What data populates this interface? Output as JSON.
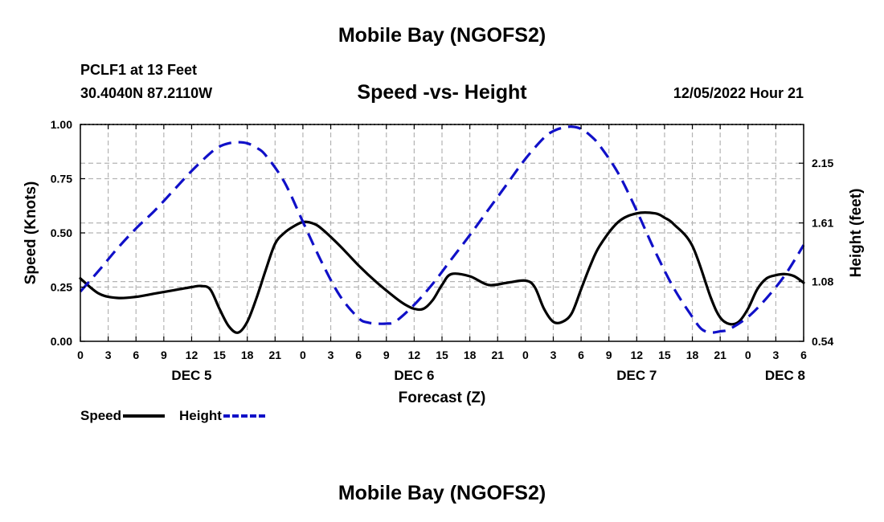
{
  "page": {
    "title_top": "Mobile Bay (NGOFS2)",
    "title_bottom": "Mobile Bay (NGOFS2)",
    "station": "PCLF1 at 13 Feet",
    "coords": "30.4040N  87.2110W",
    "date_hour": "12/05/2022 Hour 21"
  },
  "chart_data": {
    "type": "line",
    "title": "Speed -vs- Height",
    "xlabel": "Forecast (Z)",
    "ylabel": "Speed (Knots)",
    "y2label": "Height (feet)",
    "xlim": [
      0,
      78
    ],
    "ylim": [
      0,
      1.0
    ],
    "y2lim": [
      0.54,
      2.5
    ],
    "x_ticks": [
      0,
      3,
      6,
      9,
      12,
      15,
      18,
      21,
      24,
      27,
      30,
      33,
      36,
      39,
      42,
      45,
      48,
      51,
      54,
      57,
      60,
      63,
      66,
      69,
      72,
      75,
      78
    ],
    "x_tick_labels": [
      "0",
      "3",
      "6",
      "9",
      "12",
      "15",
      "18",
      "21",
      "0",
      "3",
      "6",
      "9",
      "12",
      "15",
      "18",
      "21",
      "0",
      "3",
      "6",
      "9",
      "12",
      "15",
      "18",
      "21",
      "0",
      "3",
      "6"
    ],
    "day_labels": [
      {
        "x": 12,
        "label": "DEC 5"
      },
      {
        "x": 36,
        "label": "DEC 6"
      },
      {
        "x": 60,
        "label": "DEC 7"
      },
      {
        "x": 76,
        "label": "DEC 8"
      }
    ],
    "y_ticks": [
      0.0,
      0.25,
      0.5,
      0.75,
      1.0
    ],
    "y_tick_labels": [
      "0.00",
      "0.25",
      "0.50",
      "0.75",
      "1.00"
    ],
    "y2_ticks": [
      0.54,
      1.08,
      1.61,
      2.15
    ],
    "y2_tick_labels": [
      "0.54",
      "1.08",
      "1.61",
      "2.15"
    ],
    "grid": true,
    "legend_position": "bottom-left",
    "series": [
      {
        "name": "Speed",
        "axis": "left",
        "color": "#000000",
        "style": "solid",
        "x": [
          0,
          2,
          4,
          6,
          8,
          10,
          12,
          13,
          14,
          15,
          16,
          17,
          18,
          19,
          20,
          21,
          22,
          23,
          24,
          25,
          26,
          28,
          30,
          32,
          34,
          35,
          36,
          37,
          38,
          39,
          40,
          42,
          44,
          46,
          48,
          49,
          50,
          51,
          52,
          53,
          54,
          55,
          56,
          58,
          60,
          62,
          63,
          64,
          66,
          68,
          69,
          70,
          71,
          72,
          73,
          74,
          75,
          76,
          77,
          78
        ],
        "y": [
          0.29,
          0.22,
          0.2,
          0.205,
          0.22,
          0.235,
          0.25,
          0.255,
          0.24,
          0.15,
          0.07,
          0.04,
          0.09,
          0.2,
          0.33,
          0.45,
          0.5,
          0.53,
          0.55,
          0.545,
          0.52,
          0.44,
          0.35,
          0.27,
          0.2,
          0.17,
          0.15,
          0.15,
          0.19,
          0.26,
          0.31,
          0.3,
          0.26,
          0.27,
          0.28,
          0.25,
          0.15,
          0.09,
          0.09,
          0.13,
          0.24,
          0.35,
          0.44,
          0.55,
          0.59,
          0.59,
          0.57,
          0.54,
          0.44,
          0.2,
          0.11,
          0.08,
          0.09,
          0.15,
          0.24,
          0.29,
          0.305,
          0.31,
          0.3,
          0.27
        ]
      },
      {
        "name": "Height",
        "axis": "right",
        "color": "#1010c8",
        "style": "dashed",
        "x": [
          0,
          2,
          4,
          6,
          8,
          10,
          12,
          14,
          15,
          16,
          17,
          18,
          19,
          20,
          22,
          24,
          26,
          28,
          30,
          31,
          32,
          33,
          34,
          36,
          38,
          40,
          42,
          44,
          46,
          48,
          50,
          51,
          52,
          53,
          54,
          55,
          56,
          58,
          60,
          62,
          64,
          66,
          67,
          68,
          69,
          70,
          72,
          74,
          76,
          78
        ],
        "y": [
          0.99,
          1.18,
          1.38,
          1.56,
          1.72,
          1.9,
          2.08,
          2.24,
          2.3,
          2.33,
          2.34,
          2.33,
          2.29,
          2.22,
          1.98,
          1.62,
          1.26,
          0.95,
          0.75,
          0.71,
          0.7,
          0.7,
          0.72,
          0.87,
          1.06,
          1.28,
          1.5,
          1.73,
          1.96,
          2.19,
          2.38,
          2.44,
          2.47,
          2.48,
          2.46,
          2.4,
          2.31,
          2.06,
          1.72,
          1.35,
          1.02,
          0.76,
          0.65,
          0.62,
          0.63,
          0.65,
          0.76,
          0.93,
          1.14,
          1.41
        ]
      }
    ]
  }
}
